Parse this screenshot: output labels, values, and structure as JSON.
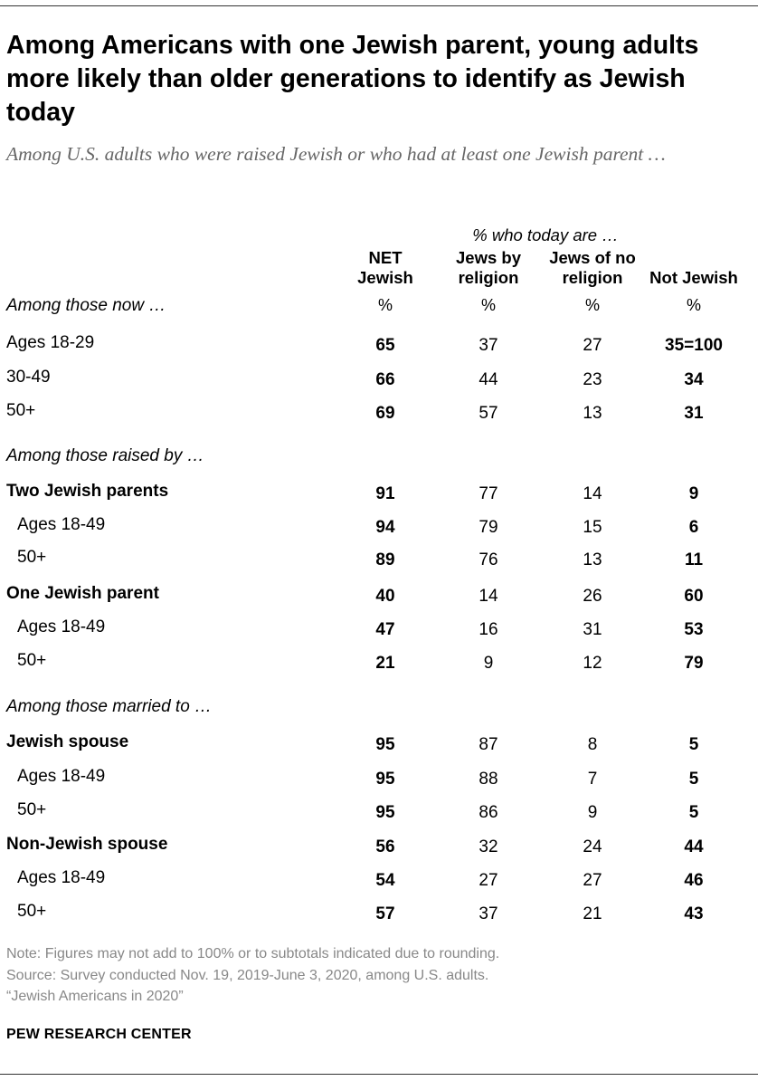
{
  "title": "Among Americans with one Jewish parent, young adults more likely than older generations to identify as Jewish today",
  "subtitle": "Among U.S. adults who were raised Jewish or who had at least one Jewish parent …",
  "spanner": "% who today are …",
  "columns": [
    {
      "line1": "NET",
      "line2": "Jewish",
      "unit": "%"
    },
    {
      "line1": "Jews by",
      "line2": "religion",
      "unit": "%"
    },
    {
      "line1": "Jews of no",
      "line2": "religion",
      "unit": "%"
    },
    {
      "line1": "",
      "line2": "Not Jewish",
      "unit": "%"
    }
  ],
  "chart_data": {
    "type": "table",
    "title": "Among Americans with one Jewish parent, young adults more likely than older generations to identify as Jewish today",
    "column_headers": [
      "NET Jewish",
      "Jews by religion",
      "Jews of no religion",
      "Not Jewish"
    ],
    "rows": [
      {
        "label": "Among those now …",
        "style": "section",
        "values": [
          "",
          "",
          "",
          ""
        ]
      },
      {
        "label": "Ages 18-29",
        "style": "plain",
        "values": [
          "65",
          "37",
          "27",
          "35=100"
        ]
      },
      {
        "label": "30-49",
        "style": "plain",
        "values": [
          "66",
          "44",
          "23",
          "34"
        ]
      },
      {
        "label": "50+",
        "style": "plain",
        "values": [
          "69",
          "57",
          "13",
          "31"
        ]
      },
      {
        "label": "Among those raised by …",
        "style": "section",
        "values": [
          "",
          "",
          "",
          ""
        ]
      },
      {
        "label": "Two Jewish parents",
        "style": "group",
        "values": [
          "91",
          "77",
          "14",
          "9"
        ]
      },
      {
        "label": "Ages 18-49",
        "style": "sub",
        "values": [
          "94",
          "79",
          "15",
          "6"
        ]
      },
      {
        "label": "50+",
        "style": "sub",
        "values": [
          "89",
          "76",
          "13",
          "11"
        ]
      },
      {
        "label": "One Jewish parent",
        "style": "group",
        "values": [
          "40",
          "14",
          "26",
          "60"
        ]
      },
      {
        "label": "Ages 18-49",
        "style": "sub",
        "values": [
          "47",
          "16",
          "31",
          "53"
        ]
      },
      {
        "label": "50+",
        "style": "sub",
        "values": [
          "21",
          "9",
          "12",
          "79"
        ]
      },
      {
        "label": "Among those married to …",
        "style": "section",
        "values": [
          "",
          "",
          "",
          ""
        ]
      },
      {
        "label": "Jewish spouse",
        "style": "group",
        "values": [
          "95",
          "87",
          "8",
          "5"
        ]
      },
      {
        "label": "Ages 18-49",
        "style": "sub",
        "values": [
          "95",
          "88",
          "7",
          "5"
        ]
      },
      {
        "label": "50+",
        "style": "sub",
        "values": [
          "95",
          "86",
          "9",
          "5"
        ]
      },
      {
        "label": "Non-Jewish spouse",
        "style": "group",
        "values": [
          "56",
          "32",
          "24",
          "44"
        ]
      },
      {
        "label": "Ages 18-49",
        "style": "sub",
        "values": [
          "54",
          "27",
          "27",
          "46"
        ]
      },
      {
        "label": "50+",
        "style": "sub",
        "values": [
          "57",
          "37",
          "21",
          "43"
        ]
      }
    ]
  },
  "notes": {
    "note": "Note: Figures may not add to 100% or to subtotals indicated due to rounding.",
    "source": "Source: Survey conducted Nov. 19, 2019-June 3, 2020, among U.S. adults.",
    "report": "“Jewish Americans in 2020”"
  },
  "org": "PEW RESEARCH CENTER"
}
